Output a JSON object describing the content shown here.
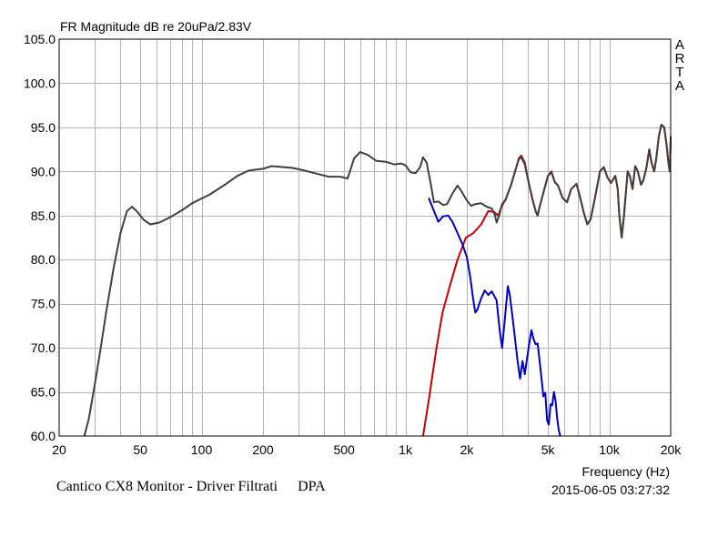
{
  "chart_data": {
    "type": "line",
    "title": "FR Magnitude dB re 20uPa/2.83V",
    "xlabel": "Frequency (Hz)",
    "ylabel": "",
    "x_scale": "log",
    "xlim": [
      20,
      20000
    ],
    "ylim": [
      60,
      105
    ],
    "x_ticks": [
      20,
      50,
      100,
      200,
      500,
      1000,
      2000,
      5000,
      10000,
      20000
    ],
    "x_tick_labels": [
      "20",
      "50",
      "100",
      "200",
      "500",
      "1k",
      "2k",
      "5k",
      "10k",
      "20k"
    ],
    "y_ticks": [
      60,
      65,
      70,
      75,
      80,
      85,
      90,
      95,
      100,
      105
    ],
    "y_tick_labels": [
      "60.0",
      "65.0",
      "70.0",
      "75.0",
      "80.0",
      "85.0",
      "90.0",
      "95.0",
      "100.0",
      "105.0"
    ],
    "grid": true,
    "series": [
      {
        "color": "#cc0000",
        "points": [
          [
            1220,
            60
          ],
          [
            1300,
            64
          ],
          [
            1420,
            70
          ],
          [
            1520,
            74
          ],
          [
            1650,
            77
          ],
          [
            1800,
            80
          ],
          [
            1980,
            82.5
          ],
          [
            2150,
            83
          ],
          [
            2350,
            84
          ],
          [
            2550,
            85.5
          ],
          [
            2720,
            85.4
          ],
          [
            2850,
            85
          ],
          [
            2960,
            86
          ],
          [
            3100,
            86.8
          ],
          [
            3300,
            88.5
          ],
          [
            3500,
            90.5
          ],
          [
            3600,
            91.5
          ],
          [
            3700,
            91.8
          ],
          [
            3850,
            91
          ],
          [
            4000,
            89
          ],
          [
            4200,
            86.8
          ],
          [
            4350,
            85.5
          ],
          [
            4450,
            85
          ],
          [
            4550,
            86
          ],
          [
            4800,
            88
          ],
          [
            5000,
            89.5
          ],
          [
            5200,
            90
          ],
          [
            5400,
            88.8
          ],
          [
            5600,
            88.4
          ],
          [
            5900,
            87
          ],
          [
            6200,
            86.5
          ],
          [
            6500,
            88
          ],
          [
            6900,
            88.6
          ],
          [
            7200,
            87
          ],
          [
            7500,
            85.3
          ],
          [
            7800,
            84
          ],
          [
            8100,
            84.6
          ],
          [
            8500,
            87
          ],
          [
            9000,
            90
          ],
          [
            9400,
            90.5
          ],
          [
            9800,
            89.3
          ],
          [
            10200,
            88.7
          ],
          [
            10700,
            89.5
          ],
          [
            11000,
            88
          ],
          [
            11200,
            85
          ],
          [
            11500,
            82.5
          ],
          [
            11800,
            85
          ],
          [
            12300,
            90
          ],
          [
            12600,
            89.5
          ],
          [
            13000,
            88
          ],
          [
            13400,
            90.6
          ],
          [
            13800,
            90
          ],
          [
            14300,
            88.5
          ],
          [
            14700,
            89
          ],
          [
            15200,
            90.4
          ],
          [
            15700,
            92.5
          ],
          [
            16100,
            91
          ],
          [
            16600,
            90
          ],
          [
            17000,
            91.5
          ],
          [
            17500,
            94
          ],
          [
            18000,
            95.3
          ],
          [
            18600,
            95
          ],
          [
            19100,
            93
          ],
          [
            19500,
            91
          ],
          [
            19800,
            90
          ],
          [
            20000,
            93.5
          ],
          [
            20000,
            94
          ]
        ]
      },
      {
        "color": "#0000cc",
        "points": [
          [
            1300,
            87
          ],
          [
            1380,
            85.5
          ],
          [
            1450,
            84.3
          ],
          [
            1530,
            84.9
          ],
          [
            1620,
            85
          ],
          [
            1700,
            84.3
          ],
          [
            1800,
            83
          ],
          [
            1900,
            81.8
          ],
          [
            2000,
            80.3
          ],
          [
            2080,
            78
          ],
          [
            2150,
            75.5
          ],
          [
            2200,
            74
          ],
          [
            2250,
            74.3
          ],
          [
            2350,
            75.6
          ],
          [
            2450,
            76.5
          ],
          [
            2550,
            76
          ],
          [
            2650,
            76.4
          ],
          [
            2800,
            75.4
          ],
          [
            2900,
            72
          ],
          [
            2980,
            70
          ],
          [
            3080,
            73.5
          ],
          [
            3180,
            77
          ],
          [
            3250,
            76
          ],
          [
            3350,
            73.5
          ],
          [
            3450,
            71
          ],
          [
            3550,
            68.5
          ],
          [
            3650,
            66.5
          ],
          [
            3750,
            68.5
          ],
          [
            3850,
            67
          ],
          [
            3950,
            68.8
          ],
          [
            4050,
            70.5
          ],
          [
            4150,
            72
          ],
          [
            4250,
            71
          ],
          [
            4350,
            70.4
          ],
          [
            4450,
            70.5
          ],
          [
            4550,
            68.5
          ],
          [
            4650,
            66.5
          ],
          [
            4750,
            64.5
          ],
          [
            4850,
            64.9
          ],
          [
            4950,
            61.8
          ],
          [
            5050,
            61.3
          ],
          [
            5150,
            63.6
          ],
          [
            5250,
            63.5
          ],
          [
            5350,
            65
          ],
          [
            5450,
            64
          ],
          [
            5550,
            62
          ],
          [
            5650,
            60.7
          ],
          [
            5750,
            60
          ]
        ]
      },
      {
        "color": "#404040",
        "points": [
          [
            26.6,
            60
          ],
          [
            28,
            62
          ],
          [
            30,
            66
          ],
          [
            32,
            70
          ],
          [
            34,
            74
          ],
          [
            37,
            79
          ],
          [
            40,
            83
          ],
          [
            43,
            85.5
          ],
          [
            45.5,
            86
          ],
          [
            48,
            85.5
          ],
          [
            52,
            84.5
          ],
          [
            56,
            84
          ],
          [
            62,
            84.2
          ],
          [
            70,
            84.8
          ],
          [
            80,
            85.6
          ],
          [
            90,
            86.4
          ],
          [
            110,
            87.4
          ],
          [
            130,
            88.5
          ],
          [
            150,
            89.5
          ],
          [
            170,
            90.1
          ],
          [
            200,
            90.3
          ],
          [
            220,
            90.6
          ],
          [
            250,
            90.5
          ],
          [
            280,
            90.4
          ],
          [
            320,
            90.1
          ],
          [
            360,
            89.8
          ],
          [
            420,
            89.4
          ],
          [
            480,
            89.4
          ],
          [
            520,
            89.2
          ],
          [
            560,
            91.5
          ],
          [
            600,
            92.2
          ],
          [
            650,
            91.9
          ],
          [
            720,
            91.2
          ],
          [
            800,
            91.1
          ],
          [
            880,
            90.8
          ],
          [
            950,
            90.9
          ],
          [
            1000,
            90.7
          ],
          [
            1060,
            89.9
          ],
          [
            1120,
            89.8
          ],
          [
            1180,
            90.5
          ],
          [
            1220,
            91.6
          ],
          [
            1270,
            91
          ],
          [
            1320,
            89
          ],
          [
            1380,
            86.5
          ],
          [
            1450,
            86.6
          ],
          [
            1530,
            86.2
          ],
          [
            1600,
            86.3
          ],
          [
            1700,
            87.5
          ],
          [
            1800,
            88.4
          ],
          [
            1900,
            87.6
          ],
          [
            2000,
            86.7
          ],
          [
            2100,
            86.1
          ],
          [
            2200,
            86.3
          ],
          [
            2350,
            86.4
          ],
          [
            2500,
            86
          ],
          [
            2650,
            85.8
          ],
          [
            2750,
            85
          ],
          [
            2800,
            84.2
          ],
          [
            2880,
            85
          ],
          [
            2980,
            86.3
          ],
          [
            3100,
            86.8
          ],
          [
            3300,
            88.5
          ],
          [
            3500,
            90.5
          ],
          [
            3600,
            91.4
          ],
          [
            3700,
            91.6
          ],
          [
            3850,
            90.8
          ],
          [
            4000,
            89
          ],
          [
            4200,
            86.8
          ],
          [
            4350,
            85.5
          ],
          [
            4450,
            85
          ],
          [
            4550,
            86
          ],
          [
            4800,
            88
          ],
          [
            5000,
            89.5
          ],
          [
            5200,
            89.9
          ],
          [
            5400,
            88.8
          ],
          [
            5600,
            88.4
          ],
          [
            5900,
            87
          ],
          [
            6200,
            86.5
          ],
          [
            6500,
            88
          ],
          [
            6900,
            88.6
          ],
          [
            7200,
            87
          ],
          [
            7500,
            85.3
          ],
          [
            7800,
            84
          ],
          [
            8100,
            84.6
          ],
          [
            8500,
            87
          ],
          [
            9000,
            90
          ],
          [
            9400,
            90.5
          ],
          [
            9800,
            89.3
          ],
          [
            10200,
            88.7
          ],
          [
            10700,
            89.5
          ],
          [
            11000,
            88
          ],
          [
            11200,
            85
          ],
          [
            11500,
            82.5
          ],
          [
            11800,
            85
          ],
          [
            12300,
            90
          ],
          [
            12600,
            89.5
          ],
          [
            13000,
            88
          ],
          [
            13400,
            90.6
          ],
          [
            13800,
            90
          ],
          [
            14300,
            88.5
          ],
          [
            14700,
            89
          ],
          [
            15200,
            90.4
          ],
          [
            15700,
            92.5
          ],
          [
            16100,
            91
          ],
          [
            16600,
            90
          ],
          [
            17000,
            91.5
          ],
          [
            17500,
            94
          ],
          [
            18000,
            95.3
          ],
          [
            18600,
            95
          ],
          [
            19100,
            93
          ],
          [
            19500,
            91
          ],
          [
            19800,
            90
          ],
          [
            20000,
            93.5
          ],
          [
            20000,
            94
          ]
        ]
      }
    ]
  },
  "side_label": [
    "A",
    "R",
    "T",
    "A"
  ],
  "caption": {
    "name": "Cantico CX8 Monitor - Driver Filtrati",
    "tag": "DPA"
  },
  "timestamp": "2015-06-05  03:27:32"
}
